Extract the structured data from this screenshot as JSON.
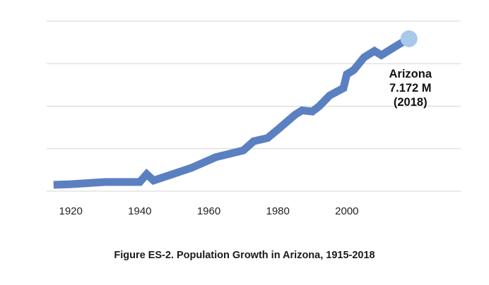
{
  "caption": "Figure ES-2. Population Growth in Arizona, 1915-2018",
  "chart_data": {
    "type": "line",
    "title": "",
    "xlabel": "",
    "ylabel": "",
    "xlim": [
      1913,
      2033
    ],
    "ylim": [
      0,
      8
    ],
    "x_ticks": [
      1920,
      1940,
      1960,
      1980,
      2000
    ],
    "grid": true,
    "y_gridlines": [
      0,
      2,
      4,
      6,
      8
    ],
    "line_color": "#5b80c1",
    "marker_color": "#a9c9ec",
    "annotation": {
      "lines": [
        "Arizona",
        "7.172 M",
        "(2018)"
      ],
      "x": 2018,
      "y": 7.172
    },
    "series": [
      {
        "values": [
          {
            "x": 1915,
            "y": 0.3
          },
          {
            "x": 1920,
            "y": 0.33
          },
          {
            "x": 1930,
            "y": 0.43
          },
          {
            "x": 1940,
            "y": 0.43
          },
          {
            "x": 1942,
            "y": 0.8
          },
          {
            "x": 1944,
            "y": 0.5
          },
          {
            "x": 1955,
            "y": 1.1
          },
          {
            "x": 1962,
            "y": 1.6
          },
          {
            "x": 1970,
            "y": 1.92
          },
          {
            "x": 1973,
            "y": 2.35
          },
          {
            "x": 1977,
            "y": 2.5
          },
          {
            "x": 1980,
            "y": 2.9
          },
          {
            "x": 1985,
            "y": 3.6
          },
          {
            "x": 1987,
            "y": 3.8
          },
          {
            "x": 1990,
            "y": 3.75
          },
          {
            "x": 1992,
            "y": 4.0
          },
          {
            "x": 1995,
            "y": 4.5
          },
          {
            "x": 1999,
            "y": 4.85
          },
          {
            "x": 2000,
            "y": 5.5
          },
          {
            "x": 2002,
            "y": 5.7
          },
          {
            "x": 2005,
            "y": 6.3
          },
          {
            "x": 2008,
            "y": 6.6
          },
          {
            "x": 2010,
            "y": 6.4
          },
          {
            "x": 2015,
            "y": 6.9
          },
          {
            "x": 2018,
            "y": 7.172
          }
        ]
      }
    ]
  }
}
